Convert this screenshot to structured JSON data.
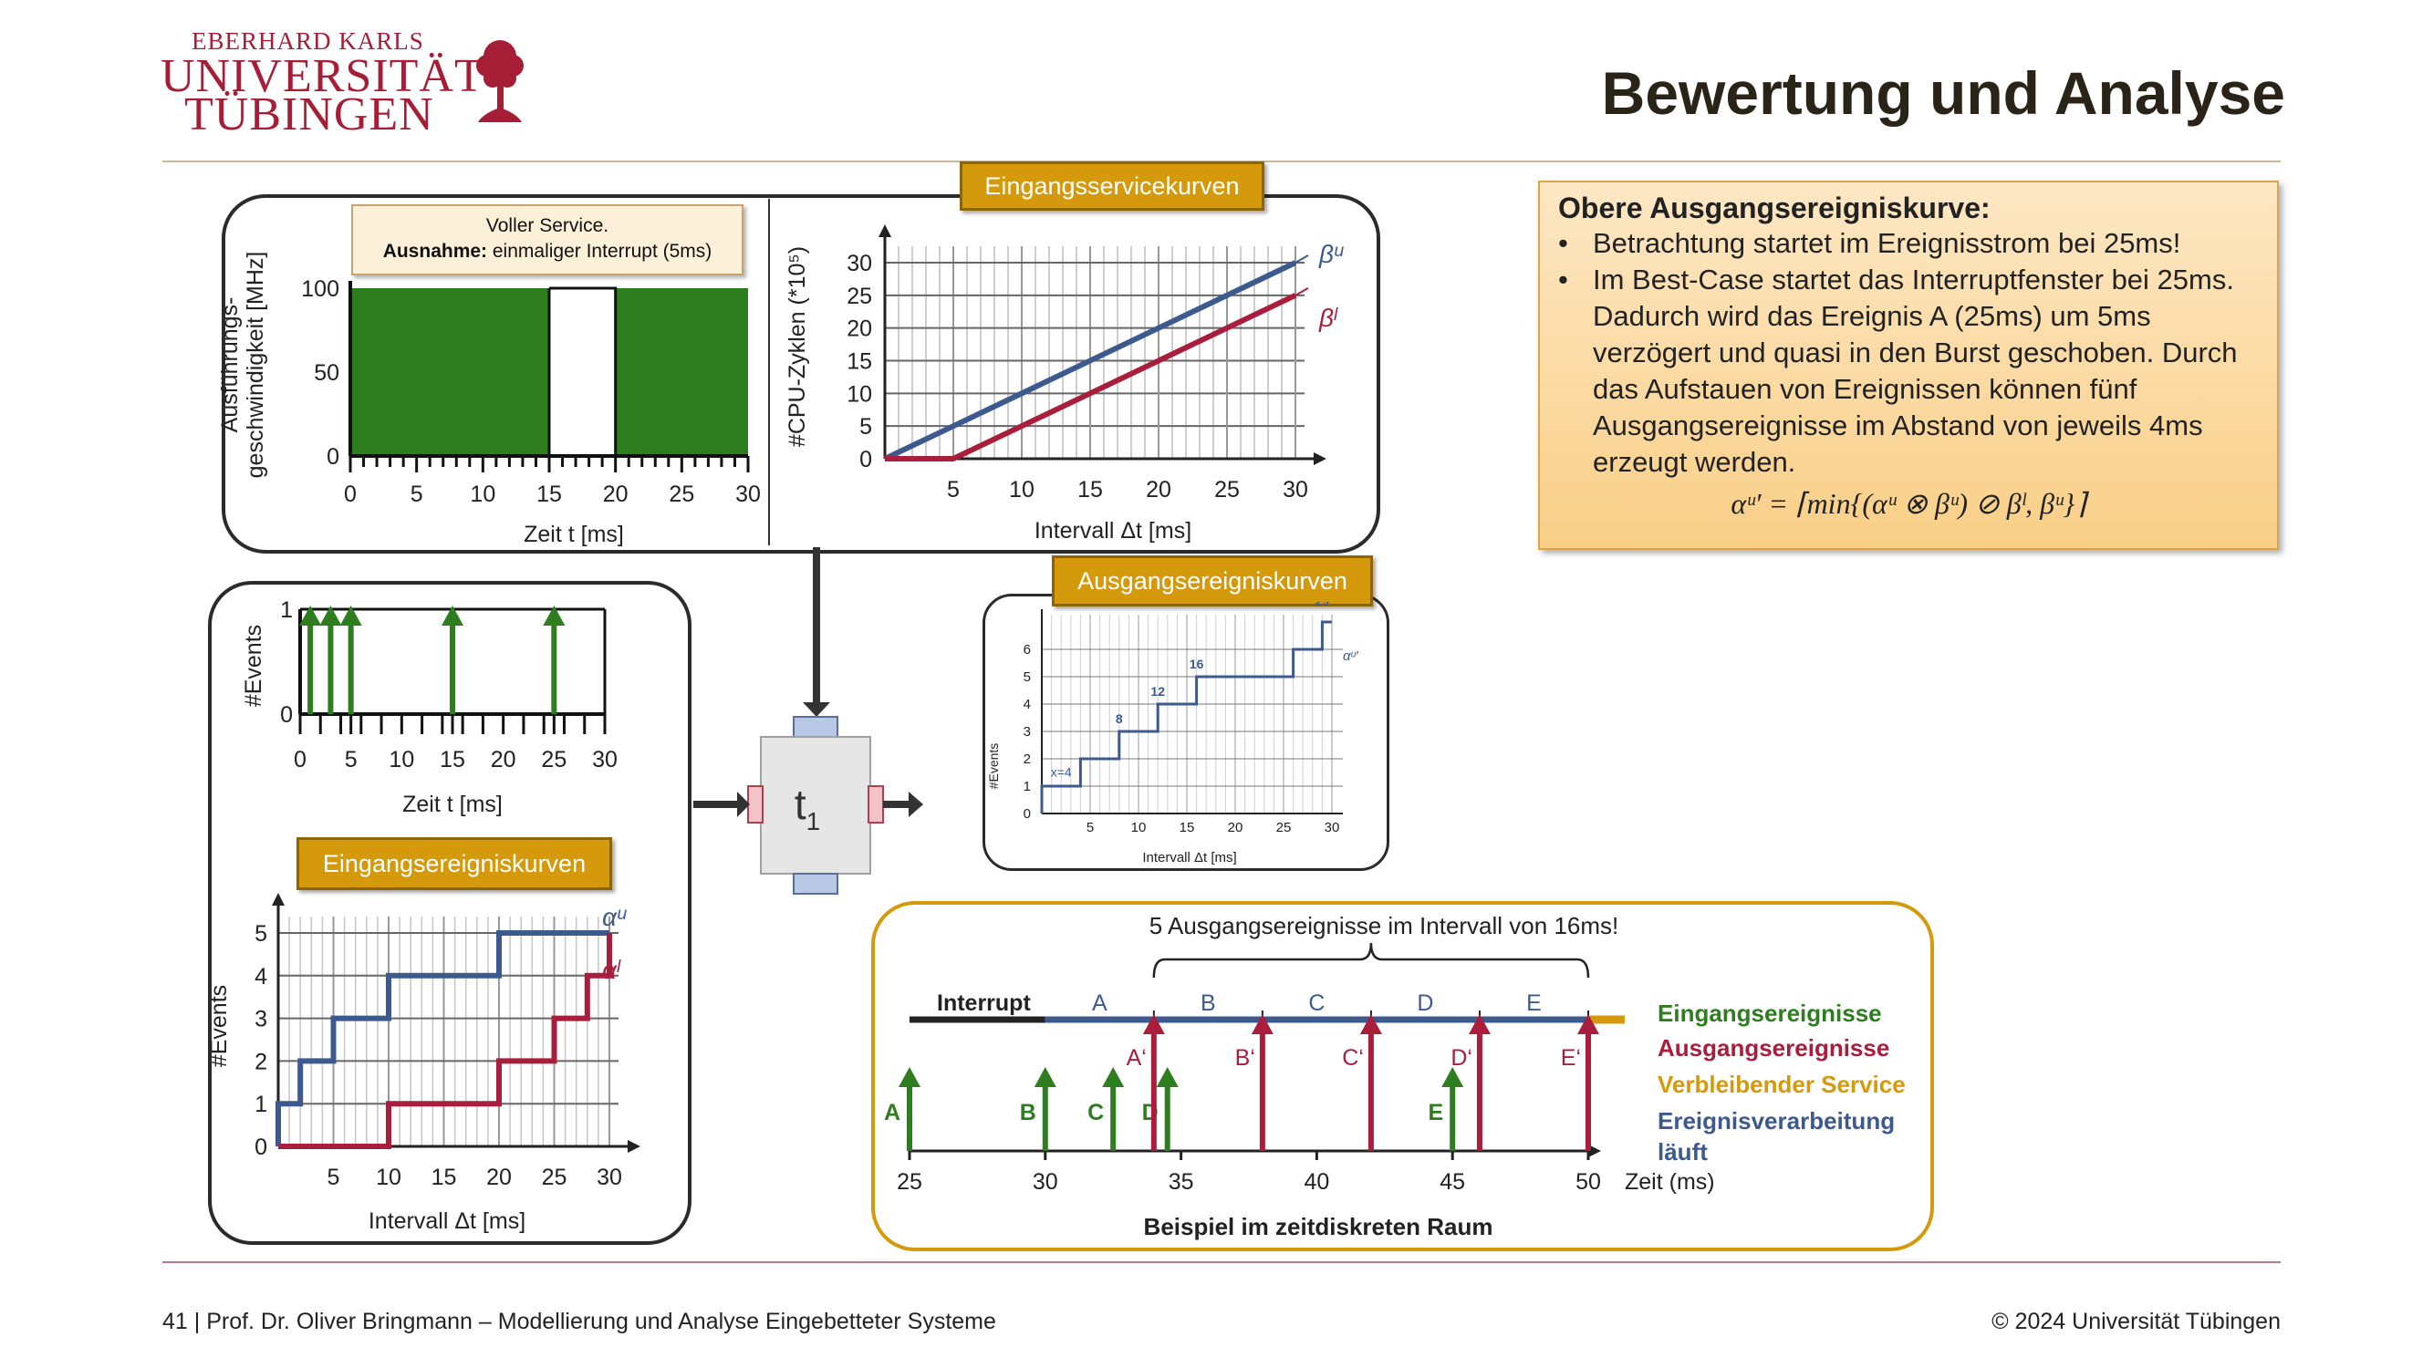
{
  "header": {
    "title": "Bewertung und Analyse",
    "logo_line1": "EBERHARD KARLS",
    "logo_line2": "UNIVERSITÄT",
    "logo_line3": "TÜBINGEN"
  },
  "footer": {
    "left": "41 | Prof. Dr. Oliver Bringmann – Modellierung und Analyse Eingebetteter Systeme",
    "right": "© 2024 Universität Tübingen"
  },
  "labels": {
    "service_curves": "Eingangsservicekurven",
    "output_curves": "Ausgangsereigniskurven",
    "input_curves": "Eingangsereigniskurven",
    "task": "t",
    "task_sub": "1"
  },
  "callout": {
    "line1": "Voller Service.",
    "line2_bold": "Ausnahme:",
    "line2_rest": " einmaliger Interrupt (5ms)"
  },
  "notes": {
    "title": "Obere Ausgangsereigniskurve:",
    "bullets": [
      "Betrachtung startet im Ereignisstrom bei 25ms!",
      "Im Best-Case startet das Interruptfenster bei 25ms. Dadurch wird das Ereignis A (25ms) um 5ms verzögert und quasi in den Burst geschoben. Durch das Aufstauen von Ereignissen können fünf Ausgangsereignisse im Abstand von jeweils 4ms erzeugt werden."
    ],
    "formula": "αᵘ′ = ⌈min{(αᵘ ⊗ βᵘ) ⊘ βˡ, βᵘ}⌉"
  },
  "chart_data": [
    {
      "type": "bar",
      "id": "service_execution",
      "xlabel": "Zeit t [ms]",
      "ylabel": "Ausführungs-\ngeschwindigkeit [MHz]",
      "xticks": [
        "0",
        "5",
        "10",
        "15",
        "20",
        "25",
        "30"
      ],
      "yticks": [
        "0",
        "50",
        "100"
      ],
      "segments": [
        {
          "from": 0,
          "to": 15,
          "value": 100
        },
        {
          "from": 15,
          "to": 20,
          "value": 0
        },
        {
          "from": 20,
          "to": 30,
          "value": 100
        }
      ],
      "color": "#2e7d1f"
    },
    {
      "type": "line",
      "id": "service_curves",
      "xlabel": "Intervall Δt [ms]",
      "ylabel": "#CPU-Zyklen (*10⁵)",
      "xticks": [
        "5",
        "10",
        "15",
        "20",
        "25",
        "30"
      ],
      "yticks": [
        "0",
        "5",
        "10",
        "15",
        "20",
        "25",
        "30"
      ],
      "xlim": [
        0,
        30
      ],
      "ylim": [
        0,
        30
      ],
      "series": [
        {
          "name": "βᵘ",
          "color": "#3d5a8f",
          "points": [
            [
              0,
              0
            ],
            [
              30,
              30
            ]
          ]
        },
        {
          "name": "βˡ",
          "color": "#a91e3c",
          "points": [
            [
              0,
              0
            ],
            [
              5,
              0
            ],
            [
              30,
              25
            ]
          ]
        }
      ]
    },
    {
      "type": "bar",
      "id": "event_stream",
      "xlabel": "Zeit t [ms]",
      "ylabel": "#Events",
      "xticks": [
        "0",
        "5",
        "10",
        "15",
        "20",
        "25",
        "30"
      ],
      "yticks": [
        "0",
        "1"
      ],
      "events": [
        1,
        3,
        5,
        15,
        25
      ],
      "color": "#2e7d1f"
    },
    {
      "type": "line",
      "id": "input_event_curves",
      "xlabel": "Intervall Δt [ms]",
      "ylabel": "#Events",
      "xticks": [
        "5",
        "10",
        "15",
        "20",
        "25",
        "30"
      ],
      "yticks": [
        "0",
        "1",
        "2",
        "3",
        "4",
        "5"
      ],
      "xlim": [
        0,
        30
      ],
      "ylim": [
        0,
        5
      ],
      "series": [
        {
          "name": "αᵘ",
          "color": "#3d5a8f",
          "points": [
            [
              0,
              0
            ],
            [
              0,
              1
            ],
            [
              2,
              1
            ],
            [
              2,
              2
            ],
            [
              5,
              2
            ],
            [
              5,
              3
            ],
            [
              10,
              3
            ],
            [
              10,
              4
            ],
            [
              20,
              4
            ],
            [
              20,
              5
            ],
            [
              30,
              5
            ]
          ]
        },
        {
          "name": "αˡ",
          "color": "#a91e3c",
          "points": [
            [
              0,
              0
            ],
            [
              10,
              0
            ],
            [
              10,
              1
            ],
            [
              20,
              1
            ],
            [
              20,
              2
            ],
            [
              25,
              2
            ],
            [
              25,
              3
            ],
            [
              28,
              3
            ],
            [
              28,
              4
            ],
            [
              30,
              4
            ],
            [
              30,
              5
            ]
          ]
        }
      ]
    },
    {
      "type": "line",
      "id": "output_event_curves",
      "xlabel": "Intervall Δt [ms]",
      "ylabel": "#Events",
      "xticks": [
        "5",
        "10",
        "15",
        "20",
        "25",
        "30"
      ],
      "yticks": [
        "0",
        "1",
        "2",
        "3",
        "4",
        "5",
        "6"
      ],
      "annotations": [
        "x=4",
        "8",
        "12",
        "16",
        "29",
        "αᵘ′"
      ],
      "series": [
        {
          "name": "αᵘ′",
          "color": "#3d5a8f",
          "points": [
            [
              0,
              0
            ],
            [
              0,
              1
            ],
            [
              4,
              1
            ],
            [
              4,
              2
            ],
            [
              8,
              2
            ],
            [
              8,
              3
            ],
            [
              12,
              3
            ],
            [
              12,
              4
            ],
            [
              16,
              4
            ],
            [
              16,
              5
            ],
            [
              26,
              5
            ],
            [
              26,
              6
            ],
            [
              29,
              6
            ],
            [
              29,
              7
            ],
            [
              30,
              7
            ]
          ]
        }
      ]
    },
    {
      "type": "timeline",
      "id": "discrete_example",
      "title": "5 Ausgangsereignisse im Intervall von 16ms!",
      "caption": "Beispiel im zeitdiskreten Raum",
      "xlabel": "Zeit (ms)",
      "xticks": [
        "25",
        "30",
        "35",
        "40",
        "45",
        "50"
      ],
      "interrupt_label": "Interrupt",
      "segments": [
        "A",
        "B",
        "C",
        "D",
        "E"
      ],
      "input_events": [
        {
          "t": 25,
          "label": "A"
        },
        {
          "t": 30,
          "label": "B"
        },
        {
          "t": 32.5,
          "label": "C"
        },
        {
          "t": 34.5,
          "label": "D"
        },
        {
          "t": 45,
          "label": "E"
        }
      ],
      "output_events": [
        {
          "t": 34,
          "label": "A‘"
        },
        {
          "t": 38,
          "label": "B‘"
        },
        {
          "t": 42,
          "label": "C‘"
        },
        {
          "t": 46,
          "label": "D‘"
        },
        {
          "t": 50,
          "label": "E‘"
        }
      ],
      "legend": [
        {
          "label": "Eingangsereignisse",
          "color": "#2e7d1f"
        },
        {
          "label": "Ausgangsereignisse",
          "color": "#a91e3c"
        },
        {
          "label": "Verbleibender Service",
          "color": "#d59a0c"
        },
        {
          "label": "Ereignisverarbeitung läuft",
          "color": "#3d5a8f"
        }
      ]
    }
  ]
}
